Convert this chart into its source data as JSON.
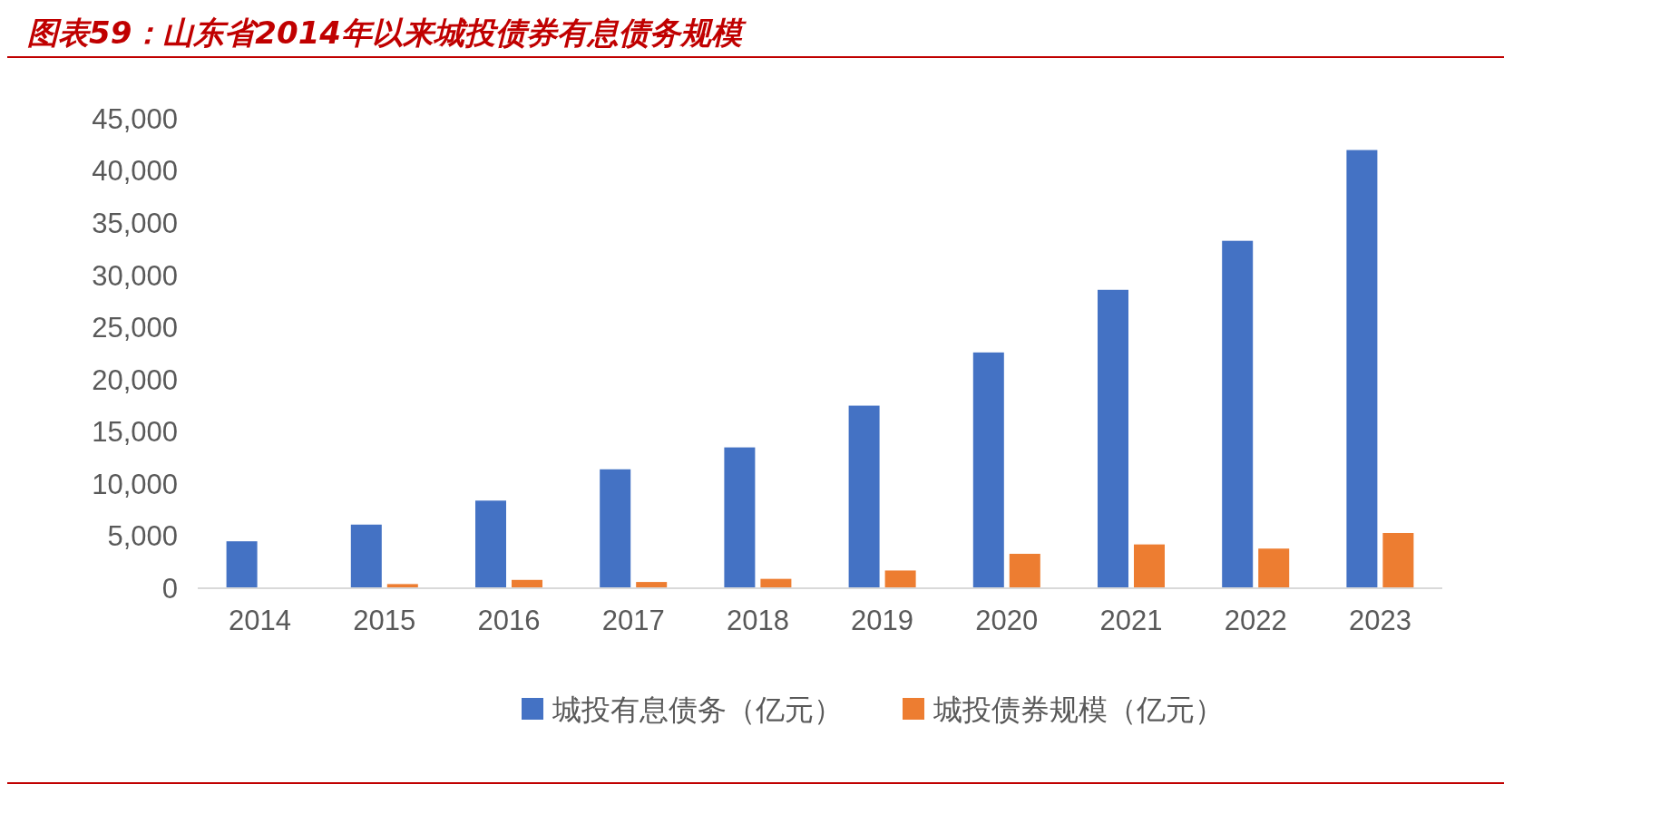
{
  "chart_data": {
    "type": "bar",
    "title": "图表59：山东省2014年以来城投债券有息债务规模",
    "categories": [
      "2014",
      "2015",
      "2016",
      "2017",
      "2018",
      "2019",
      "2020",
      "2021",
      "2022",
      "2023"
    ],
    "series": [
      {
        "name": "城投有息债务（亿元）",
        "color": "#4472c4",
        "values": [
          4500,
          6100,
          8400,
          11400,
          13500,
          17500,
          22600,
          28600,
          33300,
          42000
        ]
      },
      {
        "name": "城投债券规模（亿元）",
        "color": "#ed7d31",
        "values": [
          null,
          400,
          800,
          600,
          900,
          1700,
          3300,
          4200,
          3800,
          5300
        ]
      }
    ],
    "ylim": [
      0,
      45000
    ],
    "yticks": [
      0,
      {
        "value": 5000,
        "label": "5,000"
      },
      {
        "value": 10000,
        "label": "10,000"
      },
      {
        "value": 15000,
        "label": "15,000"
      },
      {
        "value": 20000,
        "label": "20,000"
      },
      {
        "value": 25000,
        "label": "25,000"
      },
      {
        "value": 30000,
        "label": "30,000"
      },
      {
        "value": 35000,
        "label": "35,000"
      },
      {
        "value": 40000,
        "label": "40,000"
      },
      {
        "value": 45000,
        "label": "45,000"
      }
    ],
    "grid": false,
    "legend": "bottom"
  }
}
